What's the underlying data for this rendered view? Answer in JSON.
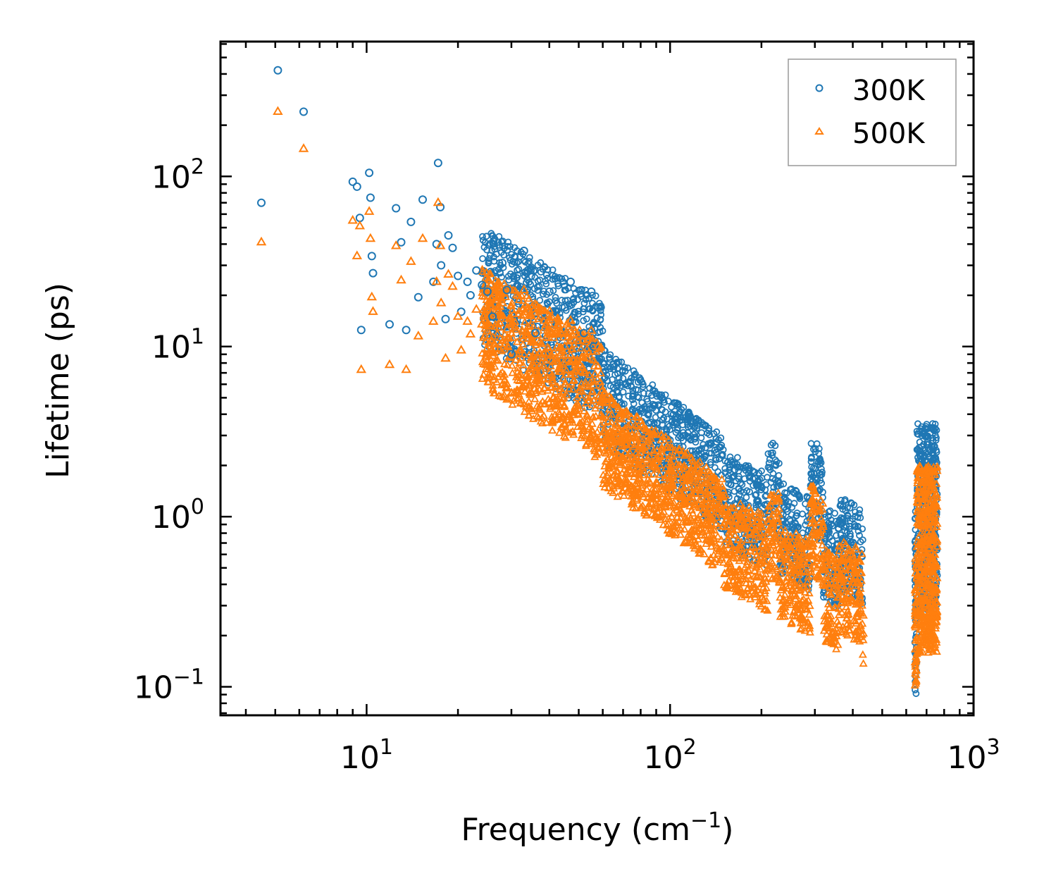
{
  "chart_data": {
    "type": "scatter",
    "title": "",
    "xlabel": "Frequency (cm",
    "xlabel_superscript": "−1",
    "xlabel_suffix": ")",
    "ylabel": "Lifetime (ps)",
    "xscale": "log",
    "yscale": "log",
    "xlim": [
      3.3,
      1000
    ],
    "ylim": [
      0.068,
      620
    ],
    "xticks": [
      {
        "value": 10,
        "base": "10",
        "exp": "1"
      },
      {
        "value": 100,
        "base": "10",
        "exp": "2"
      },
      {
        "value": 1000,
        "base": "10",
        "exp": "3"
      }
    ],
    "yticks": [
      {
        "value": 0.1,
        "base": "10",
        "exp": "−1"
      },
      {
        "value": 1,
        "base": "10",
        "exp": "0"
      },
      {
        "value": 10,
        "base": "10",
        "exp": "1"
      },
      {
        "value": 100,
        "base": "10",
        "exp": "2"
      }
    ],
    "legend_position": "top-right",
    "series": [
      {
        "name": "300K",
        "marker": "circle",
        "color": "#1f77b4",
        "x": [
          4.5,
          5.1,
          6.2,
          9.0,
          9.3,
          9.5,
          9.6,
          10.2,
          10.3,
          10.4,
          10.5,
          11.9,
          12.5,
          13.0,
          13.5,
          14.0,
          14.8,
          15.3,
          16.6,
          17.0,
          17.2,
          17.5,
          17.6,
          18.2,
          18.6,
          19.2,
          20.0,
          20.5,
          21.5,
          22.0,
          23.0,
          24.0,
          25.0,
          26.0,
          28.0,
          29.0,
          30.0,
          33.0,
          34.0,
          36.0,
          40.0,
          45.0,
          47.0,
          48.0,
          52.0,
          55.0,
          56.0,
          58.0
        ],
        "y": [
          70,
          420,
          240,
          93,
          87,
          57,
          12.5,
          105,
          75,
          34,
          27,
          13.5,
          65,
          41,
          12.5,
          54,
          19.5,
          73,
          24,
          40,
          120,
          66,
          30,
          14.5,
          45,
          38,
          26,
          16,
          24,
          20,
          28,
          23,
          21,
          15,
          31,
          21.5,
          9,
          36.5,
          28,
          12,
          21,
          17,
          24,
          14,
          12,
          21,
          10,
          17
        ]
      },
      {
        "name": "500K",
        "marker": "triangle",
        "color": "#ff7f0e",
        "x": [
          4.5,
          5.1,
          6.2,
          9.0,
          9.3,
          9.5,
          9.6,
          10.2,
          10.3,
          10.4,
          10.5,
          11.9,
          12.5,
          13.0,
          13.5,
          14.0,
          14.8,
          15.3,
          16.6,
          17.0,
          17.2,
          17.5,
          17.6,
          18.2,
          18.6,
          19.2,
          20.0,
          20.5,
          21.5,
          22.0,
          23.0,
          24.0,
          25.0,
          26.0,
          28.0,
          29.0,
          30.0,
          33.0,
          34.0,
          36.0,
          40.0,
          45.0,
          47.0,
          48.0,
          52.0,
          55.0,
          56.0,
          58.0
        ],
        "y": [
          41,
          240,
          145,
          55,
          34,
          51,
          7.3,
          62,
          43,
          19.5,
          16,
          7.8,
          39,
          24.5,
          7.3,
          31.5,
          11.5,
          43,
          14,
          24,
          70,
          39,
          18,
          8.5,
          26.5,
          22.5,
          15,
          9.5,
          14,
          11.8,
          16.5,
          13.5,
          12.4,
          8.8,
          18,
          12.6,
          5.3,
          21.5,
          16.5,
          7,
          12.3,
          10,
          14.2,
          8.2,
          7,
          12.4,
          5.9,
          10
        ]
      }
    ],
    "dense_band_note": "",
    "legend": [
      {
        "label": "300K"
      },
      {
        "label": "500K"
      }
    ]
  }
}
